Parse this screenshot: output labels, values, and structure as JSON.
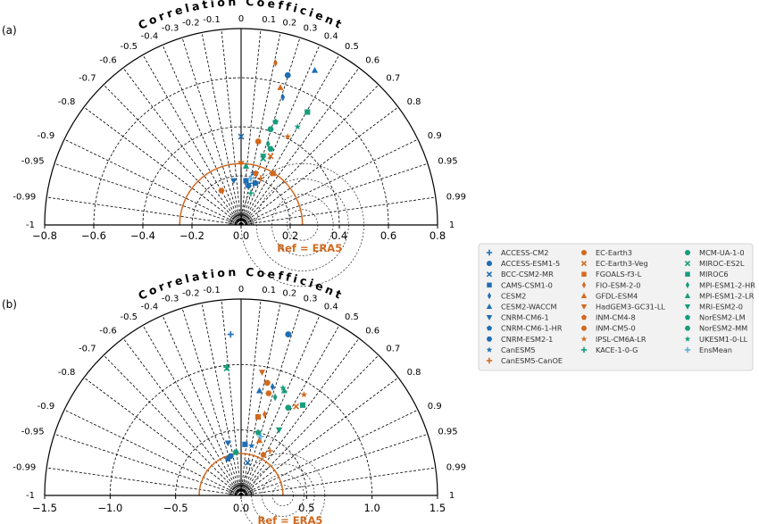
{
  "chart_data": {
    "type": "scatter",
    "subtype": "taylor-diagram",
    "colors": {
      "blue": "#1f6db3",
      "orange": "#d2691e",
      "green": "#179c7d",
      "lightblue": "#5aaee0",
      "grid": "#000000"
    },
    "legend": {
      "placement": "right",
      "entries": [
        {
          "label": "ACCESS-CM2",
          "marker": "plus",
          "color": "#1f6db3"
        },
        {
          "label": "ACCESS-ESM1-5",
          "marker": "circle",
          "color": "#1f6db3"
        },
        {
          "label": "BCC-CSM2-MR",
          "marker": "x",
          "color": "#1f6db3"
        },
        {
          "label": "CAMS-CSM1-0",
          "marker": "square",
          "color": "#1f6db3"
        },
        {
          "label": "CESM2",
          "marker": "diamond",
          "color": "#1f6db3"
        },
        {
          "label": "CESM2-WACCM",
          "marker": "triangle-up",
          "color": "#1f6db3"
        },
        {
          "label": "CNRM-CM6-1",
          "marker": "triangle-down",
          "color": "#1f6db3"
        },
        {
          "label": "CNRM-CM6-1-HR",
          "marker": "pentagon",
          "color": "#1f6db3"
        },
        {
          "label": "CNRM-ESM2-1",
          "marker": "hexagon",
          "color": "#1f6db3"
        },
        {
          "label": "CanESM5",
          "marker": "star",
          "color": "#1f6db3"
        },
        {
          "label": "CanESM5-CanOE",
          "marker": "plus",
          "color": "#d2691e"
        },
        {
          "label": "EC-Earth3",
          "marker": "circle",
          "color": "#d2691e"
        },
        {
          "label": "EC-Earth3-Veg",
          "marker": "x",
          "color": "#d2691e"
        },
        {
          "label": "FGOALS-f3-L",
          "marker": "square",
          "color": "#d2691e"
        },
        {
          "label": "FIO-ESM-2-0",
          "marker": "diamond",
          "color": "#d2691e"
        },
        {
          "label": "GFDL-ESM4",
          "marker": "triangle-up",
          "color": "#d2691e"
        },
        {
          "label": "HadGEM3-GC31-LL",
          "marker": "triangle-down",
          "color": "#d2691e"
        },
        {
          "label": "INM-CM4-8",
          "marker": "pentagon",
          "color": "#d2691e"
        },
        {
          "label": "INM-CM5-0",
          "marker": "hexagon",
          "color": "#d2691e"
        },
        {
          "label": "IPSL-CM6A-LR",
          "marker": "star",
          "color": "#d2691e"
        },
        {
          "label": "KACE-1-0-G",
          "marker": "plus",
          "color": "#179c7d"
        },
        {
          "label": "MCM-UA-1-0",
          "marker": "circle",
          "color": "#179c7d"
        },
        {
          "label": "MIROC-ES2L",
          "marker": "x",
          "color": "#179c7d"
        },
        {
          "label": "MIROC6",
          "marker": "square",
          "color": "#179c7d"
        },
        {
          "label": "MPI-ESM1-2-HR",
          "marker": "diamond",
          "color": "#179c7d"
        },
        {
          "label": "MPI-ESM1-2-LR",
          "marker": "triangle-up",
          "color": "#179c7d"
        },
        {
          "label": "MRI-ESM2-0",
          "marker": "triangle-down",
          "color": "#179c7d"
        },
        {
          "label": "NorESM2-LM",
          "marker": "pentagon",
          "color": "#179c7d"
        },
        {
          "label": "NorESM2-MM",
          "marker": "hexagon",
          "color": "#179c7d"
        },
        {
          "label": "UKESM1-0-LL",
          "marker": "star",
          "color": "#179c7d"
        },
        {
          "label": "EnsMean",
          "marker": "plus",
          "color": "#5aaee0"
        }
      ]
    },
    "panels": [
      {
        "panel_label": "(a)",
        "title": "Correlation Coefficient",
        "ref_label": "Ref = ERA5",
        "xlim": [
          -0.8,
          0.8
        ],
        "x_ticks": [
          -0.8,
          -0.6,
          -0.4,
          -0.2,
          0.0,
          0.2,
          0.4,
          0.6,
          0.8
        ],
        "x_tick_labels": [
          "−0.8",
          "−0.6",
          "−0.4",
          "−0.2",
          "0.0",
          "0.2",
          "0.4",
          "0.6",
          "0.8"
        ],
        "std_circles": [
          0.2,
          0.4,
          0.6
        ],
        "ref_std": 0.25,
        "corr_ticks": [
          -1,
          -0.99,
          -0.95,
          -0.9,
          -0.8,
          -0.7,
          -0.6,
          -0.5,
          -0.4,
          -0.3,
          -0.2,
          -0.1,
          0,
          0.1,
          0.2,
          0.3,
          0.4,
          0.5,
          0.6,
          0.7,
          0.8,
          0.9,
          0.95,
          0.99,
          1
        ],
        "corr_tick_labels": [
          "-1",
          "-0.99",
          "-0.95",
          "-0.9",
          "-0.8",
          "-0.7",
          "-0.6",
          "-0.5",
          "-0.4",
          "-0.3",
          "-0.2",
          "-0.1",
          "0",
          "0.1",
          "0.2",
          "0.3",
          "0.4",
          "0.5",
          "0.6",
          "0.7",
          "0.8",
          "0.9",
          "0.95",
          "0.99",
          "1"
        ],
        "points": [
          {
            "model": "ACCESS-CM2",
            "x": 0.05,
            "y": 0.17
          },
          {
            "model": "ACCESS-ESM1-5",
            "x": 0.19,
            "y": 0.61
          },
          {
            "model": "BCC-CSM2-MR",
            "x": 0.0,
            "y": 0.36
          },
          {
            "model": "CAMS-CSM1-0",
            "x": 0.02,
            "y": 0.18
          },
          {
            "model": "CESM2",
            "x": 0.17,
            "y": 0.52
          },
          {
            "model": "CESM2-WACCM",
            "x": 0.3,
            "y": 0.63
          },
          {
            "model": "CNRM-CM6-1",
            "x": -0.03,
            "y": 0.18
          },
          {
            "model": "CNRM-CM6-1-HR",
            "x": 0.06,
            "y": 0.17
          },
          {
            "model": "CNRM-ESM2-1",
            "x": 0.03,
            "y": 0.16
          },
          {
            "model": "CanESM5",
            "x": 0.05,
            "y": 0.21
          },
          {
            "model": "CanESM5-CanOE",
            "x": 0.08,
            "y": 0.19
          },
          {
            "model": "EC-Earth3",
            "x": 0.07,
            "y": 0.34
          },
          {
            "model": "EC-Earth3-Veg",
            "x": 0.12,
            "y": 0.28
          },
          {
            "model": "FGOALS-f3-L",
            "x": 0.13,
            "y": 0.21
          },
          {
            "model": "FIO-ESM-2-0",
            "x": 0.14,
            "y": 0.66
          },
          {
            "model": "GFDL-ESM4",
            "x": 0.16,
            "y": 0.56
          },
          {
            "model": "HadGEM3-GC31-LL",
            "x": 0.0,
            "y": 0.25
          },
          {
            "model": "INM-CM4-8",
            "x": 0.06,
            "y": 0.21
          },
          {
            "model": "INM-CM5-0",
            "x": -0.08,
            "y": 0.14
          },
          {
            "model": "IPSL-CM6A-LR",
            "x": 0.19,
            "y": 0.36
          },
          {
            "model": "KACE-1-0-G",
            "x": 0.04,
            "y": 0.13
          },
          {
            "model": "MCM-UA-1-0",
            "x": 0.12,
            "y": 0.39
          },
          {
            "model": "MIROC-ES2L",
            "x": 0.09,
            "y": 0.27
          },
          {
            "model": "MIROC6",
            "x": 0.27,
            "y": 0.46
          },
          {
            "model": "MPI-ESM1-2-HR",
            "x": 0.11,
            "y": 0.33
          },
          {
            "model": "MPI-ESM1-2-LR",
            "x": 0.02,
            "y": 0.24
          },
          {
            "model": "MRI-ESM2-0",
            "x": 0.09,
            "y": 0.28
          },
          {
            "model": "NorESM2-LM",
            "x": 0.14,
            "y": 0.42
          },
          {
            "model": "NorESM2-MM",
            "x": 0.12,
            "y": 0.31
          },
          {
            "model": "UKESM1-0-LL",
            "x": 0.23,
            "y": 0.4
          },
          {
            "model": "EnsMean",
            "x": 0.04,
            "y": 0.19
          }
        ]
      },
      {
        "panel_label": "(b)",
        "title": "Correlation Coefficient",
        "ref_label": "Ref = ERA5",
        "xlim": [
          -1.5,
          1.5
        ],
        "x_ticks": [
          -1.5,
          -1.0,
          -0.5,
          0.0,
          0.5,
          1.0,
          1.5
        ],
        "x_tick_labels": [
          "−1.5",
          "−1.0",
          "−0.5",
          "0.0",
          "0.5",
          "1.0",
          "1.5"
        ],
        "std_circles": [
          0.5,
          1.0
        ],
        "ref_std": 0.32,
        "corr_ticks": [
          -1,
          -0.99,
          -0.95,
          -0.9,
          -0.8,
          -0.7,
          -0.6,
          -0.5,
          -0.4,
          -0.3,
          -0.2,
          -0.1,
          0,
          0.1,
          0.2,
          0.3,
          0.4,
          0.5,
          0.6,
          0.7,
          0.8,
          0.9,
          0.95,
          0.99,
          1
        ],
        "corr_tick_labels": [
          "-1",
          "-0.99",
          "-0.95",
          "-0.9",
          "-0.8",
          "-0.7",
          "-0.6",
          "-0.5",
          "-0.4",
          "-0.3",
          "-0.2",
          "-0.1",
          "0",
          "0.1",
          "0.2",
          "0.3",
          "0.4",
          "0.5",
          "0.6",
          "0.7",
          "0.8",
          "0.9",
          "0.95",
          "0.99",
          "1"
        ],
        "points": [
          {
            "model": "ACCESS-CM2",
            "x": -0.08,
            "y": 1.23
          },
          {
            "model": "ACCESS-ESM1-5",
            "x": 0.36,
            "y": 1.23
          },
          {
            "model": "BCC-CSM2-MR",
            "x": 0.05,
            "y": 0.25
          },
          {
            "model": "CAMS-CSM1-0",
            "x": 0.03,
            "y": 0.39
          },
          {
            "model": "CESM2",
            "x": 0.24,
            "y": 0.83
          },
          {
            "model": "CESM2-WACCM",
            "x": 0.14,
            "y": 0.8
          },
          {
            "model": "CNRM-CM6-1",
            "x": -0.1,
            "y": 0.4
          },
          {
            "model": "CNRM-CM6-1-HR",
            "x": -0.1,
            "y": 0.28
          },
          {
            "model": "CNRM-ESM2-1",
            "x": -0.08,
            "y": 0.3
          },
          {
            "model": "CanESM5",
            "x": 0.08,
            "y": 0.38
          },
          {
            "model": "CanESM5-CanOE",
            "x": 0.22,
            "y": 0.34
          },
          {
            "model": "EC-Earth3",
            "x": 0.2,
            "y": 0.86
          },
          {
            "model": "EC-Earth3-Veg",
            "x": 0.42,
            "y": 0.68
          },
          {
            "model": "FGOALS-f3-L",
            "x": 0.13,
            "y": 0.6
          },
          {
            "model": "FIO-ESM-2-0",
            "x": 0.18,
            "y": 0.62
          },
          {
            "model": "GFDL-ESM4",
            "x": 0.14,
            "y": 0.42
          },
          {
            "model": "HadGEM3-GC31-LL",
            "x": 0.16,
            "y": 0.94
          },
          {
            "model": "INM-CM4-8",
            "x": 0.17,
            "y": 0.31
          },
          {
            "model": "INM-CM5-0",
            "x": 0.21,
            "y": 0.78
          },
          {
            "model": "IPSL-CM6A-LR",
            "x": 0.48,
            "y": 0.77
          },
          {
            "model": "KACE-1-0-G",
            "x": -0.11,
            "y": 0.98
          },
          {
            "model": "MCM-UA-1-0",
            "x": 0.36,
            "y": 0.67
          },
          {
            "model": "MIROC-ES2L",
            "x": -0.11,
            "y": 0.97
          },
          {
            "model": "MIROC6",
            "x": 0.47,
            "y": 0.69
          },
          {
            "model": "MPI-ESM1-2-HR",
            "x": 0.26,
            "y": 0.75
          },
          {
            "model": "MPI-ESM1-2-LR",
            "x": 0.33,
            "y": 0.8
          },
          {
            "model": "MRI-ESM2-0",
            "x": 0.29,
            "y": 0.5
          },
          {
            "model": "NorESM2-LM",
            "x": 0.13,
            "y": 0.48
          },
          {
            "model": "NorESM2-MM",
            "x": -0.04,
            "y": 0.33
          },
          {
            "model": "UKESM1-0-LL",
            "x": 0.32,
            "y": 0.82
          },
          {
            "model": "EnsMean",
            "x": 0.15,
            "y": 0.45
          }
        ]
      }
    ]
  }
}
